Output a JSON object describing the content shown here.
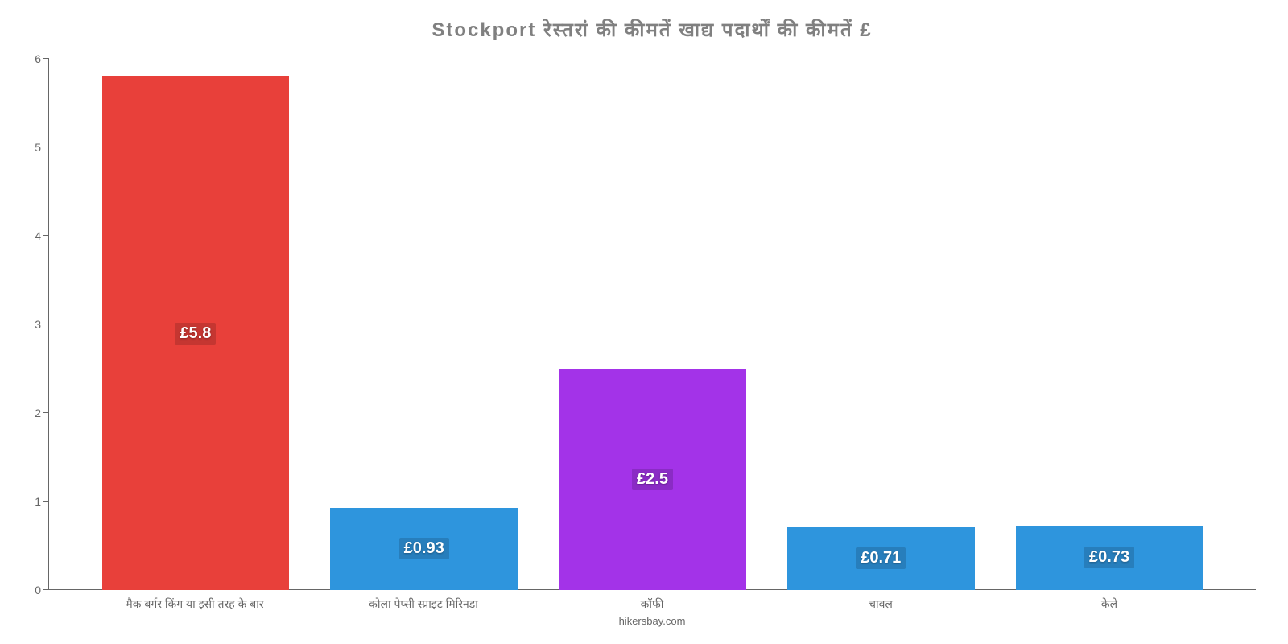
{
  "chart": {
    "type": "bar",
    "title": "Stockport रेस्तरां   की   कीमतें   खाद्य   पदार्थों   की   कीमतें   £",
    "title_color": "#808080",
    "title_fontsize": 24,
    "background_color": "#ffffff",
    "axis_color": "#666666",
    "label_color": "#666666",
    "xlabel_fontsize": 14,
    "ylabel_fontsize": 14,
    "attribution": "hikersbay.com",
    "attribution_fontsize": 13,
    "ylim": [
      0,
      6
    ],
    "ytick_step": 1,
    "yticks": [
      0,
      1,
      2,
      3,
      4,
      5,
      6
    ],
    "bar_width_ratio": 0.82,
    "value_label_fontsize": 20,
    "value_label_color": "#ffffff",
    "categories": [
      "मैक बर्गर किंग या इसी तरह के बार",
      "कोला पेप्सी स्प्राइट मिरिनडा",
      "कॉफी",
      "चावल",
      "केले"
    ],
    "values": [
      5.8,
      0.93,
      2.5,
      0.71,
      0.73
    ],
    "value_labels": [
      "£5.8",
      "£0.93",
      "£2.5",
      "£0.71",
      "£0.73"
    ],
    "bar_colors": [
      "#e8403a",
      "#2e95dd",
      "#a333e8",
      "#2e95dd",
      "#2e95dd"
    ]
  }
}
